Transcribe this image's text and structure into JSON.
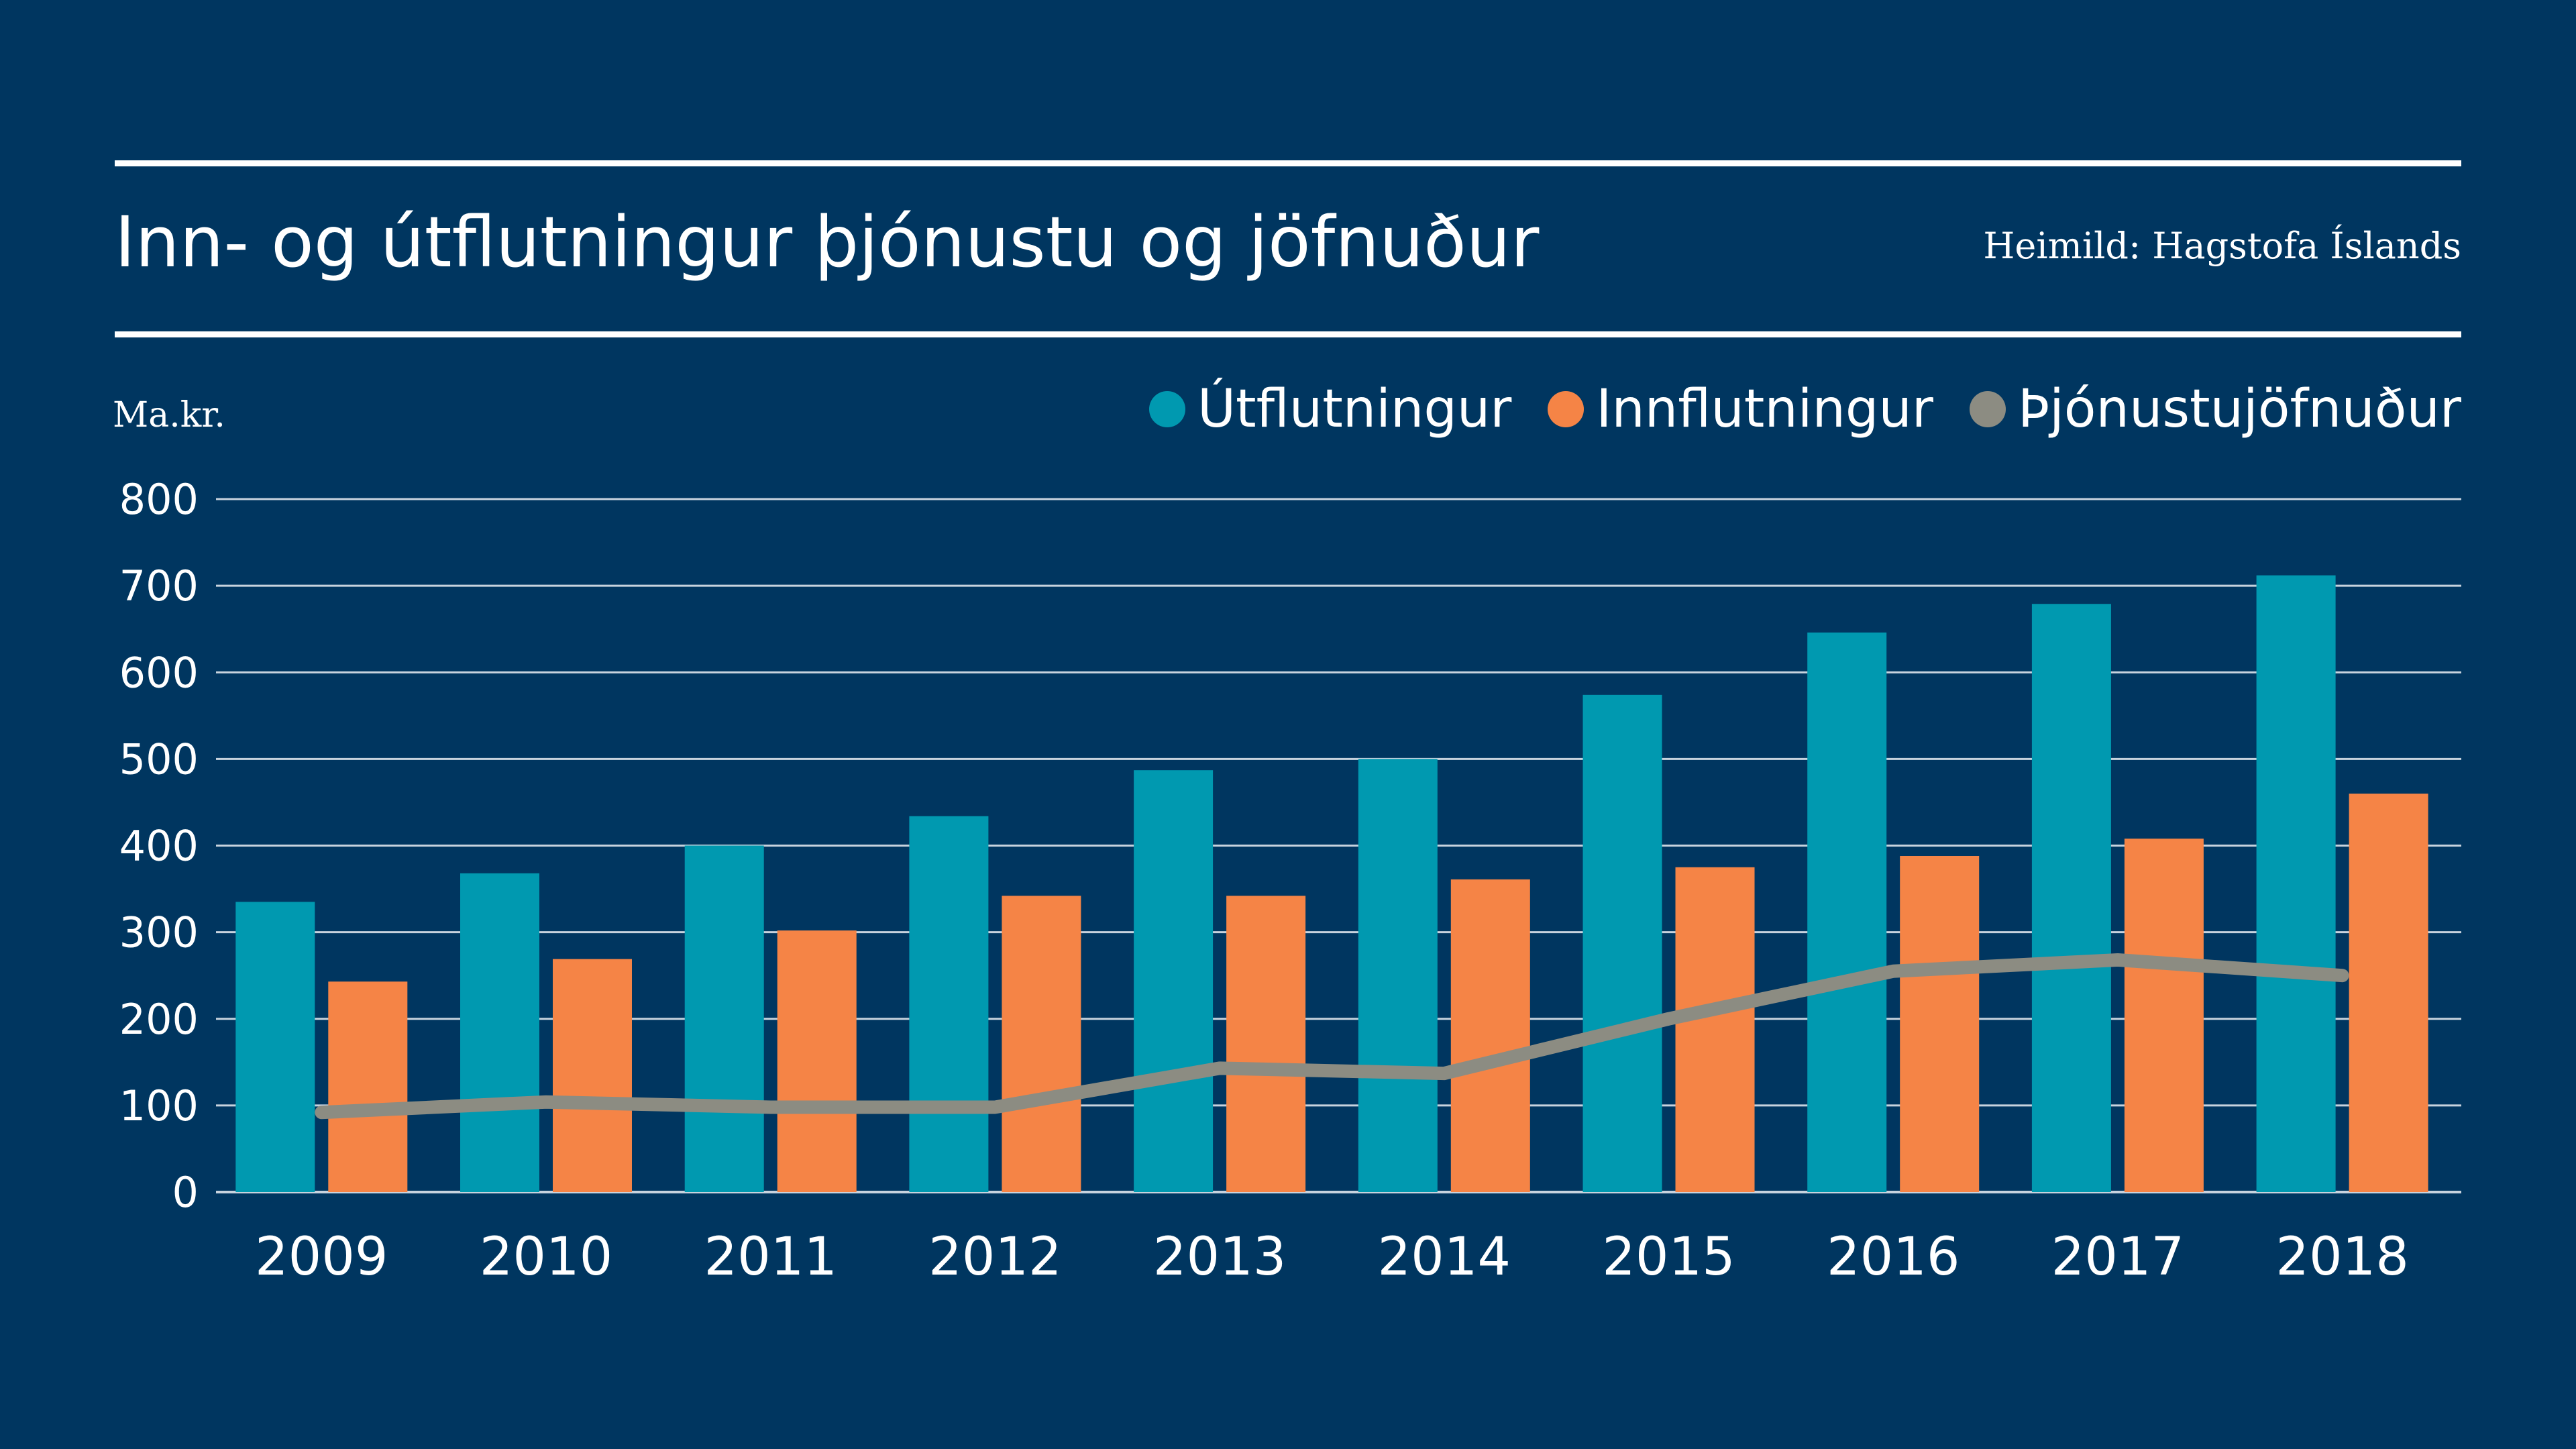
{
  "header": {
    "title": "Inn- og útflutningur þjónustu og jöfnuður",
    "source": "Heimild: Hagstofa Íslands"
  },
  "chart_data": {
    "type": "bar",
    "title": "Inn- og útflutningur þjónustu og jöfnuður",
    "ylabel": "Ma.kr.",
    "xlabel": "",
    "ylim": [
      0,
      800
    ],
    "yticks": [
      0,
      100,
      200,
      300,
      400,
      500,
      600,
      700,
      800
    ],
    "grid": true,
    "legend_position": "top-right",
    "categories": [
      "2009",
      "2010",
      "2011",
      "2012",
      "2013",
      "2014",
      "2015",
      "2016",
      "2017",
      "2018"
    ],
    "series": [
      {
        "name": "Útflutningur",
        "type": "bar",
        "color": "#0099b0",
        "values": [
          335,
          368,
          400,
          434,
          487,
          500,
          574,
          646,
          679,
          712
        ]
      },
      {
        "name": "Innflutningur",
        "type": "bar",
        "color": "#f58446",
        "values": [
          243,
          269,
          302,
          342,
          342,
          361,
          375,
          388,
          408,
          460
        ]
      },
      {
        "name": "Þjónustujöfnuður",
        "type": "line",
        "color": "#8c8c82",
        "values": [
          92,
          104,
          98,
          98,
          143,
          137,
          200,
          255,
          268,
          250
        ]
      }
    ]
  },
  "colors": {
    "background": "#003660",
    "grid": "#c8d3de",
    "text": "#ffffff"
  }
}
